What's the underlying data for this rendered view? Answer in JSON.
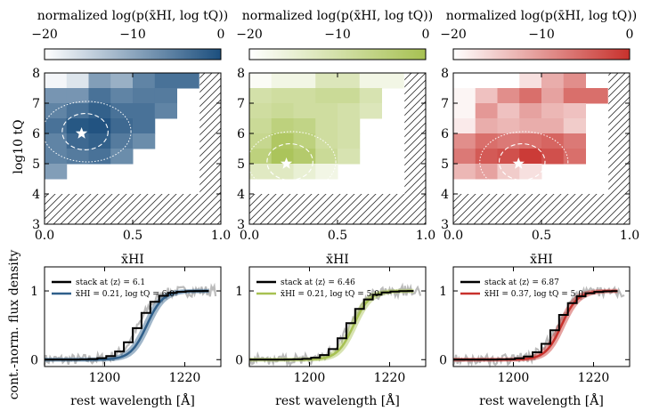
{
  "chart_data": [
    {
      "type": "heatmap",
      "id": "A",
      "colorbar": {
        "label": "normalized log(p(x̄HI, log tQ))",
        "ticks": [
          "−20",
          "−10",
          "0"
        ],
        "range": [
          -20,
          0
        ],
        "colors": [
          "#ffffff",
          "#1c4f7e"
        ]
      },
      "xlabel": "x̄HI",
      "ylabel": "log10 tQ",
      "xlim": [
        0,
        1
      ],
      "ylim": [
        3,
        8
      ],
      "xticks": [
        "0.0",
        "0.5",
        "1.0"
      ],
      "yticks": [
        "3",
        "4",
        "5",
        "6",
        "7",
        "8"
      ],
      "star": [
        0.21,
        6.0
      ],
      "grid_x": [
        0,
        0.125,
        0.25,
        0.375,
        0.5,
        0.625,
        0.75,
        0.875
      ],
      "grid_y": [
        7.5,
        7.0,
        6.5,
        6.0,
        5.5,
        5.0,
        4.5,
        4.0
      ],
      "values": [
        [
          -19,
          -17,
          -9,
          -11,
          -6,
          -4,
          -4,
          null
        ],
        [
          -8,
          -8,
          -4,
          -6,
          -5,
          -5,
          null,
          null
        ],
        [
          -6,
          -4,
          -2,
          -4,
          -4,
          -6,
          null,
          null
        ],
        [
          -4,
          -1,
          -0.5,
          -3,
          -4,
          null,
          null,
          null
        ],
        [
          -6,
          -3,
          -2,
          -5,
          -7,
          null,
          null,
          null
        ],
        [
          -6,
          -5,
          -4,
          -7,
          null,
          null,
          null,
          null
        ],
        [
          -9,
          null,
          null,
          null,
          null,
          null,
          null,
          null
        ],
        [
          null,
          null,
          null,
          null,
          null,
          null,
          null,
          null
        ]
      ]
    },
    {
      "type": "heatmap",
      "id": "B",
      "colorbar": {
        "label": "normalized log(p(x̄HI, log tQ))",
        "ticks": [
          "−20",
          "−10",
          "0"
        ],
        "range": [
          -20,
          0
        ],
        "colors": [
          "#ffffff",
          "#a7c152"
        ]
      },
      "xlabel": "x̄HI",
      "ylabel": "",
      "xlim": [
        0,
        1
      ],
      "ylim": [
        3,
        8
      ],
      "xticks": [
        "0.0",
        "0.5",
        "1.0"
      ],
      "yticks": [
        "3",
        "4",
        "5",
        "6",
        "7",
        "8"
      ],
      "star": [
        0.21,
        5.0
      ],
      "grid_x": [
        0,
        0.125,
        0.25,
        0.375,
        0.5,
        0.625,
        0.75,
        0.875
      ],
      "grid_y": [
        7.5,
        7.0,
        6.5,
        6.0,
        5.5,
        5.0,
        4.5,
        4.0
      ],
      "values": [
        [
          -19,
          -17,
          -17,
          -12,
          -12,
          -17,
          -17,
          null
        ],
        [
          -10,
          -9,
          -9,
          -8,
          -8,
          -11,
          null,
          null
        ],
        [
          -9,
          -8,
          -9,
          -9,
          -10,
          -12,
          null,
          null
        ],
        [
          -8,
          -5,
          -6,
          -9,
          -10,
          null,
          null,
          null
        ],
        [
          -7,
          -2,
          -5,
          -9,
          -10,
          null,
          null,
          null
        ],
        [
          -5,
          -1,
          -3,
          -8,
          -11,
          null,
          null,
          null
        ],
        [
          -13,
          -13,
          -15,
          -17,
          null,
          null,
          null,
          null
        ],
        [
          null,
          null,
          null,
          null,
          null,
          null,
          null,
          null
        ]
      ]
    },
    {
      "type": "heatmap",
      "id": "C",
      "colorbar": {
        "label": "normalized log(p(x̄HI, log tQ))",
        "ticks": [
          "−20",
          "−10",
          "0"
        ],
        "range": [
          -20,
          0
        ],
        "colors": [
          "#ffffff",
          "#c8312c"
        ]
      },
      "xlabel": "x̄HI",
      "ylabel": "",
      "xlim": [
        0,
        1
      ],
      "ylim": [
        3,
        8
      ],
      "xticks": [
        "0.0",
        "0.5",
        "1.0"
      ],
      "yticks": [
        "3",
        "4",
        "5",
        "6",
        "7",
        "8"
      ],
      "star": [
        0.37,
        5.0
      ],
      "grid_x": [
        0,
        0.125,
        0.25,
        0.375,
        0.5,
        0.625,
        0.75,
        0.875
      ],
      "grid_y": [
        7.5,
        7.0,
        6.5,
        6.0,
        5.5,
        5.0,
        4.5,
        4.0
      ],
      "values": [
        [
          null,
          null,
          null,
          -17,
          -12,
          -9,
          null,
          null
        ],
        [
          -19,
          -14,
          -9,
          -6,
          -11,
          -6,
          -6,
          null
        ],
        [
          -19,
          -10,
          -14,
          -11,
          -13,
          -14,
          null,
          null
        ],
        [
          -18,
          -12,
          -13,
          -12,
          -12,
          -15,
          null,
          null
        ],
        [
          -9,
          -6,
          -7,
          -6,
          -5,
          -7,
          null,
          null
        ],
        [
          -7,
          -4,
          -3,
          -1,
          -3,
          -6,
          null,
          null
        ],
        [
          -13,
          -11,
          -15,
          -17,
          null,
          null,
          null,
          null
        ],
        [
          null,
          null,
          null,
          null,
          null,
          null,
          null,
          null
        ]
      ]
    },
    {
      "type": "line",
      "id": "A",
      "xlabel": "rest wavelength [Å]",
      "ylabel": "cont.-norm. flux density",
      "xlim": [
        1185,
        1229
      ],
      "ylim": [
        -0.1,
        1.35
      ],
      "xticks": [
        "1200",
        "1220"
      ],
      "yticks": [
        "0",
        "1"
      ],
      "series": [
        {
          "name": "stack at ⟨z⟩ = 6.1",
          "color": "#000000",
          "x0": 1208.5
        },
        {
          "name": "x̄HI = 0.21, log tQ = 6.0",
          "color": "#2f5f8a",
          "x0": 1210.5
        }
      ]
    },
    {
      "type": "line",
      "id": "B",
      "xlabel": "rest wavelength [Å]",
      "ylabel": "",
      "xlim": [
        1185,
        1229
      ],
      "ylim": [
        -0.1,
        1.35
      ],
      "xticks": [
        "1200",
        "1220"
      ],
      "yticks": [
        "0",
        "1"
      ],
      "series": [
        {
          "name": "stack at ⟨z⟩ = 6.46",
          "color": "#000000",
          "x0": 1210.0
        },
        {
          "name": "x̄HI = 0.21, log tQ = 5.0",
          "color": "#a7c152",
          "x0": 1211.0
        }
      ]
    },
    {
      "type": "line",
      "id": "C",
      "xlabel": "rest wavelength [Å]",
      "ylabel": "",
      "xlim": [
        1185,
        1229
      ],
      "ylim": [
        -0.1,
        1.35
      ],
      "xticks": [
        "1200",
        "1220"
      ],
      "yticks": [
        "0",
        "1"
      ],
      "series": [
        {
          "name": "stack at ⟨z⟩ = 6.87",
          "color": "#000000",
          "x0": 1211.0
        },
        {
          "name": "x̄HI = 0.37, log tQ = 5.0",
          "color": "#c8312c",
          "x0": 1212.0
        }
      ]
    }
  ]
}
